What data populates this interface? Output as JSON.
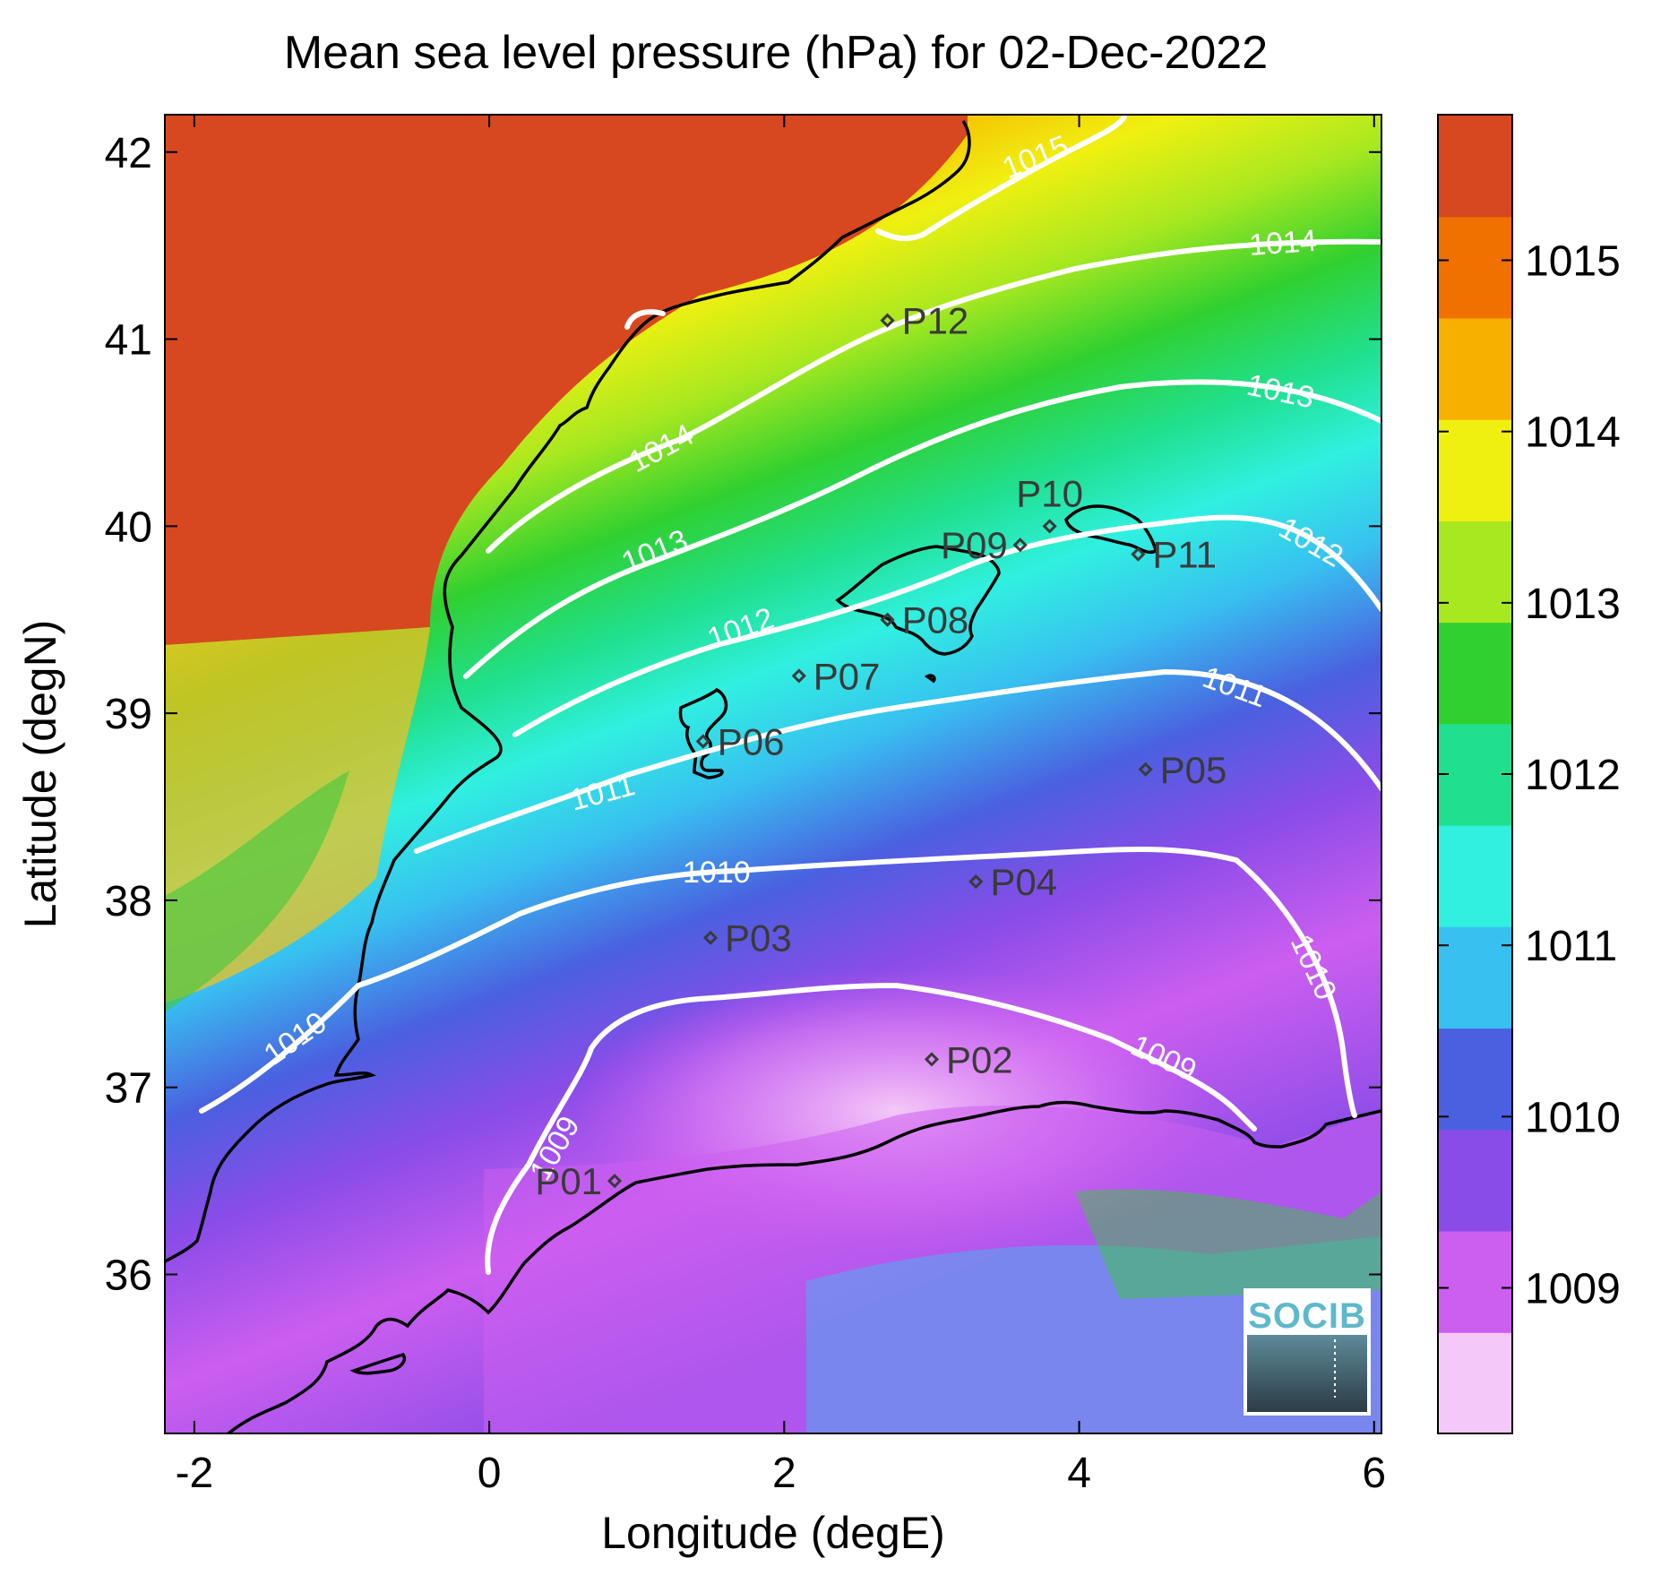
{
  "title": "Mean sea level pressure (hPa) for 02-Dec-2022",
  "axes": {
    "xlabel": "Longitude (degE)",
    "ylabel": "Latitude (degN)",
    "xlim": [
      -2.2,
      6.05
    ],
    "ylim": [
      35.15,
      42.2
    ],
    "xticks": [
      -2,
      0,
      2,
      4,
      6
    ],
    "yticks": [
      36,
      37,
      38,
      39,
      40,
      41,
      42
    ],
    "xtick_labels": [
      "-2",
      "0",
      "2",
      "4",
      "6"
    ],
    "ytick_labels": [
      "36",
      "37",
      "38",
      "39",
      "40",
      "41",
      "42"
    ]
  },
  "colorbar": {
    "range": [
      1008.15,
      1015.85
    ],
    "ticks": [
      1009,
      1010,
      1011,
      1012,
      1013,
      1014,
      1015
    ],
    "tick_labels": [
      "1009",
      "1010",
      "1011",
      "1012",
      "1013",
      "1014",
      "1015"
    ],
    "colormap": [
      "#f4c8f8",
      "#cc5ef0",
      "#8a4ce8",
      "#4a60e0",
      "#38c0f0",
      "#30f0e0",
      "#20e090",
      "#30d030",
      "#a8e820",
      "#f0f010",
      "#f8b000",
      "#f07000",
      "#d84820"
    ]
  },
  "contours": [
    {
      "label": "1015"
    },
    {
      "label": "1014"
    },
    {
      "label": "1013"
    },
    {
      "label": "1012"
    },
    {
      "label": "1011"
    },
    {
      "label": "1010"
    },
    {
      "label": "1009"
    }
  ],
  "stations": [
    {
      "id": "P01",
      "lon": 0.85,
      "lat": 36.5
    },
    {
      "id": "P02",
      "lon": 3.0,
      "lat": 37.15
    },
    {
      "id": "P03",
      "lon": 1.5,
      "lat": 37.8
    },
    {
      "id": "P04",
      "lon": 3.3,
      "lat": 38.1
    },
    {
      "id": "P05",
      "lon": 4.45,
      "lat": 38.7
    },
    {
      "id": "P06",
      "lon": 1.45,
      "lat": 38.85
    },
    {
      "id": "P07",
      "lon": 2.1,
      "lat": 39.2
    },
    {
      "id": "P08",
      "lon": 2.7,
      "lat": 39.5
    },
    {
      "id": "P09",
      "lon": 3.6,
      "lat": 39.9
    },
    {
      "id": "P10",
      "lon": 3.8,
      "lat": 40.0
    },
    {
      "id": "P11",
      "lon": 4.4,
      "lat": 39.85
    },
    {
      "id": "P12",
      "lon": 2.7,
      "lat": 41.1
    }
  ],
  "logo": {
    "text": "SOCIB"
  }
}
